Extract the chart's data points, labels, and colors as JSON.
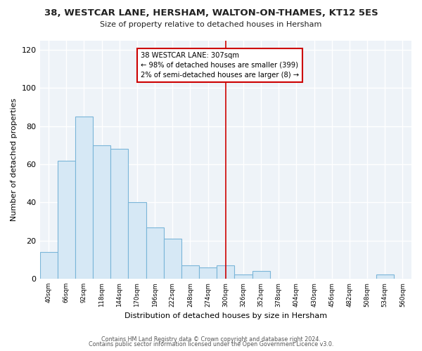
{
  "title": "38, WESTCAR LANE, HERSHAM, WALTON-ON-THAMES, KT12 5ES",
  "subtitle": "Size of property relative to detached houses in Hersham",
  "xlabel": "Distribution of detached houses by size in Hersham",
  "ylabel": "Number of detached properties",
  "bin_labels": [
    "40sqm",
    "66sqm",
    "92sqm",
    "118sqm",
    "144sqm",
    "170sqm",
    "196sqm",
    "222sqm",
    "248sqm",
    "274sqm",
    "300sqm",
    "326sqm",
    "352sqm",
    "378sqm",
    "404sqm",
    "430sqm",
    "456sqm",
    "482sqm",
    "508sqm",
    "534sqm",
    "560sqm"
  ],
  "bar_heights": [
    14,
    62,
    85,
    70,
    68,
    40,
    27,
    21,
    7,
    6,
    7,
    2,
    4,
    0,
    0,
    0,
    0,
    0,
    0,
    2,
    0
  ],
  "bar_color": "#d6e8f5",
  "bar_edge_color": "#7ab5d8",
  "vline_color": "#cc0000",
  "annotation_title": "38 WESTCAR LANE: 307sqm",
  "annotation_line1": "← 98% of detached houses are smaller (399)",
  "annotation_line2": "2% of semi-detached houses are larger (8) →",
  "annotation_box_color": "#ffffff",
  "annotation_box_edge_color": "#cc0000",
  "ylim": [
    0,
    125
  ],
  "yticks": [
    0,
    20,
    40,
    60,
    80,
    100,
    120
  ],
  "footer1": "Contains HM Land Registry data © Crown copyright and database right 2024.",
  "footer2": "Contains public sector information licensed under the Open Government Licence v3.0.",
  "bg_color": "#ffffff",
  "plot_bg_color": "#eef3f8",
  "grid_color": "#ffffff"
}
